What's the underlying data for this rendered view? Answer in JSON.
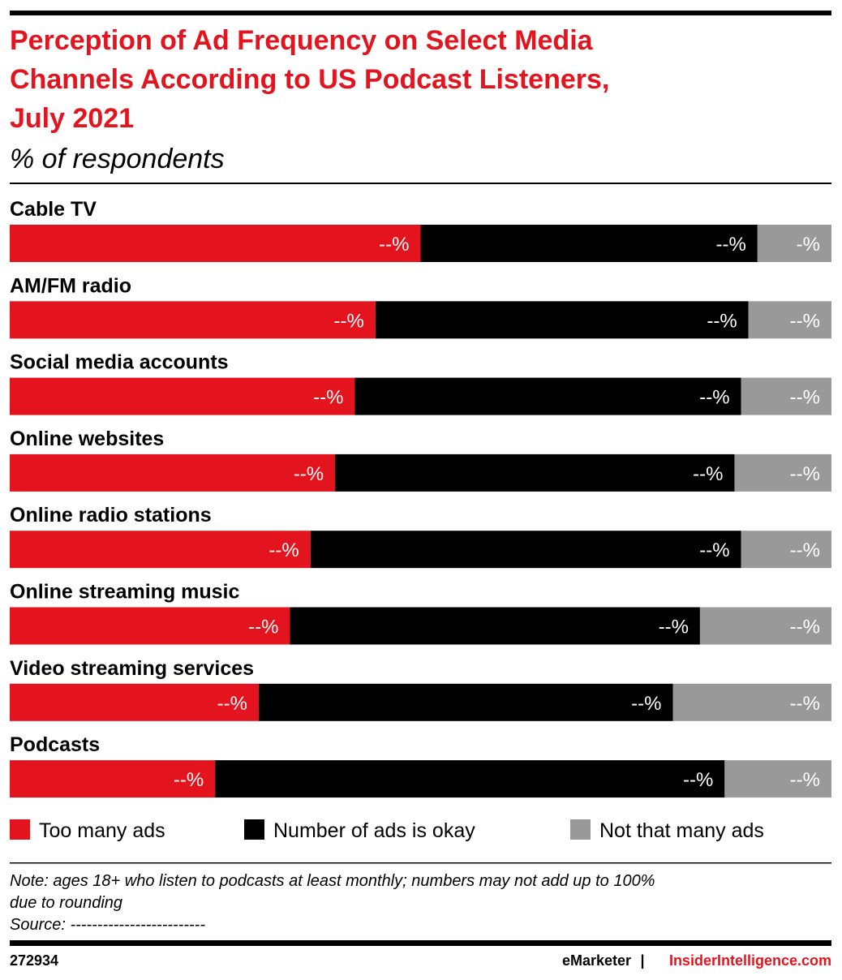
{
  "chart_data": {
    "type": "bar",
    "orientation": "horizontal",
    "stacked": true,
    "title": [
      "Perception of Ad Frequency on Select Media",
      "Channels According to US Podcast Listeners,",
      "July 2021"
    ],
    "subtitle": "% of respondents",
    "categories": [
      "Cable TV",
      "AM/FM radio",
      "Social media accounts",
      "Online websites",
      "Online radio stations",
      "Online streaming music",
      "Video streaming services",
      "Podcasts"
    ],
    "xlim": [
      0,
      100
    ],
    "series": [
      {
        "name": "Too many ads",
        "color": "#e3141d",
        "values": [
          50.0,
          44.5,
          42.0,
          39.6,
          36.6,
          34.1,
          30.3,
          25.0
        ],
        "value_labels": [
          "--%",
          "--%",
          "--%",
          "--%",
          "--%",
          "--%",
          "--%",
          "--%"
        ]
      },
      {
        "name": "Number of ads is okay",
        "color": "#000000",
        "values": [
          41.0,
          45.4,
          47.0,
          48.6,
          52.4,
          49.9,
          50.4,
          62.0
        ],
        "value_labels": [
          "--%",
          "--%",
          "--%",
          "--%",
          "--%",
          "--%",
          "--%",
          "--%"
        ]
      },
      {
        "name": "Not that many ads",
        "color": "#999999",
        "values": [
          9.0,
          10.1,
          11.0,
          11.8,
          11.0,
          16.0,
          19.3,
          13.0
        ],
        "value_labels": [
          "-%",
          "--%",
          "--%",
          "--%",
          "--%",
          "--%",
          "--%",
          "--%"
        ]
      }
    ],
    "note": [
      "Note: ages 18+ who listen to podcasts at least monthly; numbers may not add up to 100%",
      "due to rounding"
    ],
    "source": "Source: -------------------------",
    "chart_id": "272934",
    "footer": [
      "eMarketer",
      "|",
      "InsiderIntelligence.com"
    ]
  }
}
